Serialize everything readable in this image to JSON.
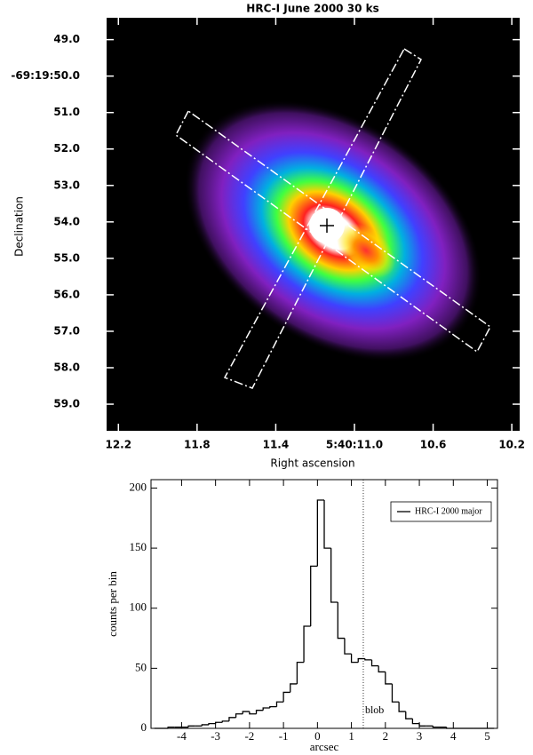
{
  "chart_data": [
    {
      "type": "image",
      "title": "HRC-I  June 2000  30 ks",
      "xlabel": "Right ascension",
      "ylabel": "Declination",
      "xlim": [
        12.26,
        10.16
      ],
      "xticks": [
        {
          "value": 12.2,
          "label": "12.2"
        },
        {
          "value": 11.8,
          "label": "11.8"
        },
        {
          "value": 11.4,
          "label": "11.4"
        },
        {
          "value": 11.0,
          "label": "5:40:11.0"
        },
        {
          "value": 10.6,
          "label": "10.6"
        },
        {
          "value": 10.2,
          "label": "10.2"
        }
      ],
      "ylim": [
        59.73,
        48.4
      ],
      "yticks": [
        {
          "value": 49,
          "label": "49.0"
        },
        {
          "value": 50,
          "label": "-69:19:50.0"
        },
        {
          "value": 51,
          "label": "51.0"
        },
        {
          "value": 52,
          "label": "52.0"
        },
        {
          "value": 53,
          "label": "53.0"
        },
        {
          "value": 54,
          "label": "54.0"
        },
        {
          "value": 55,
          "label": "55.0"
        },
        {
          "value": 56,
          "label": "56.0"
        },
        {
          "value": 57,
          "label": "57.0"
        },
        {
          "value": 58,
          "label": "58.0"
        },
        {
          "value": 59,
          "label": "59.0"
        }
      ]
    },
    {
      "type": "histogram",
      "xlabel": "arcsec",
      "ylabel": "counts per bin",
      "xlim": [
        -4.9,
        5.3
      ],
      "xticks": [
        -4,
        -3,
        -2,
        -1,
        0,
        1,
        2,
        3,
        4,
        5
      ],
      "ylim": [
        0,
        207
      ],
      "yticks": [
        0,
        50,
        100,
        150,
        200
      ],
      "legend": "upper right",
      "series": [
        {
          "name": "HRC-I 2000 major",
          "color": "#000000",
          "bins": [
            -4.8,
            -4.6,
            -4.4,
            -4.2,
            -4.0,
            -3.8,
            -3.6,
            -3.4,
            -3.2,
            -3.0,
            -2.8,
            -2.6,
            -2.4,
            -2.2,
            -2.0,
            -1.8,
            -1.6,
            -1.4,
            -1.2,
            -1.0,
            -0.8,
            -0.6,
            -0.4,
            -0.2,
            0.0,
            0.2,
            0.4,
            0.6,
            0.8,
            1.0,
            1.2,
            1.4,
            1.6,
            1.8,
            2.0,
            2.2,
            2.4,
            2.6,
            2.8,
            3.0,
            3.2,
            3.4,
            3.6,
            3.8,
            4.0,
            4.2,
            4.4,
            4.6,
            4.8,
            5.0,
            5.2
          ],
          "values": [
            0,
            0,
            1,
            1,
            1,
            2,
            2,
            3,
            4,
            5,
            6,
            9,
            12,
            14,
            12,
            15,
            17,
            18,
            22,
            30,
            37,
            55,
            85,
            135,
            190,
            150,
            105,
            75,
            62,
            55,
            58,
            57,
            52,
            47,
            37,
            22,
            14,
            8,
            4,
            2,
            2,
            1,
            1,
            0,
            0,
            0,
            0,
            0,
            0,
            0
          ]
        }
      ],
      "vlines": [
        {
          "x": 1.35,
          "label": "blob"
        }
      ]
    }
  ]
}
